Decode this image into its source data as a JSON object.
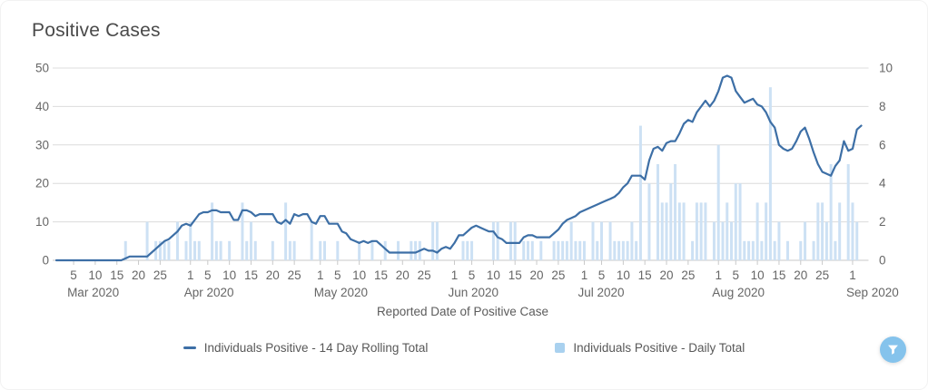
{
  "header": {
    "title": "Positive Cases"
  },
  "x_axis_title": "Reported Date of Positive Case",
  "legend": {
    "items": [
      {
        "label": "Individuals Positive - 14 Day Rolling Total",
        "marker": "line",
        "color": "#3d6fa6"
      },
      {
        "label": "Individuals Positive - Daily Total",
        "marker": "square",
        "color": "#a9d1ef"
      }
    ]
  },
  "controls": {
    "filter_button": {
      "icon": "funnel-icon",
      "color": "#85c3ec"
    }
  },
  "colors": {
    "line": "#3d6fa6",
    "bar": "#cde1f4",
    "grid": "#dcdcdc",
    "axis_baseline": "#c9c9c9",
    "tick_text": "#666666"
  },
  "chart_data": {
    "type": "line+bar",
    "title": "Positive Cases",
    "xlabel": "Reported Date of Positive Case",
    "grid": "horizontal",
    "legend_position": "bottom",
    "y_left": {
      "ticks": [
        0,
        10,
        20,
        30,
        40,
        50
      ],
      "min": 0,
      "max": 50
    },
    "y_right": {
      "ticks": [
        0,
        2,
        4,
        6,
        8,
        10
      ],
      "min": 0,
      "max": 10
    },
    "x_months": [
      {
        "label": "Mar 2020",
        "start": 0,
        "ticks": [
          5,
          10,
          15,
          20,
          25
        ]
      },
      {
        "label": "Apr 2020",
        "start": 31,
        "ticks": [
          1,
          5,
          10,
          15,
          20,
          25
        ]
      },
      {
        "label": "May 2020",
        "start": 61,
        "ticks": [
          1,
          5,
          10,
          15,
          20,
          25
        ]
      },
      {
        "label": "Jun 2020",
        "start": 92,
        "ticks": [
          1,
          5,
          10,
          15,
          20,
          25
        ]
      },
      {
        "label": "Jul 2020",
        "start": 122,
        "ticks": [
          1,
          5,
          10,
          15,
          20,
          25
        ]
      },
      {
        "label": "Aug 2020",
        "start": 153,
        "ticks": [
          1,
          5,
          10,
          15,
          20,
          25
        ]
      },
      {
        "label": "Sep 2020",
        "start": 184,
        "ticks": [
          1
        ]
      }
    ],
    "days_total": 187,
    "series": [
      {
        "name": "Individuals Positive - 14 Day Rolling Total",
        "type": "line",
        "axis": "left",
        "color": "#3d6fa6",
        "values": [
          0,
          0,
          0,
          0,
          0,
          0,
          0,
          0,
          0,
          0,
          0,
          0,
          0,
          0,
          0,
          0,
          0.5,
          1,
          1,
          1,
          1,
          1,
          2,
          3,
          4,
          5,
          5.5,
          6.5,
          7.5,
          9,
          9.5,
          9,
          10.5,
          12,
          12.5,
          12.5,
          13,
          13,
          12.5,
          12.5,
          12.5,
          10.5,
          10.5,
          13,
          13,
          12.5,
          11.5,
          12,
          12,
          12,
          12,
          10,
          9.5,
          10.5,
          9.5,
          12,
          11.5,
          12,
          12,
          10,
          9.5,
          11.5,
          11.5,
          9.5,
          9.5,
          9.5,
          7.5,
          7,
          5.5,
          5,
          4.5,
          5,
          4.5,
          5,
          5,
          4,
          3,
          2,
          2,
          2,
          2,
          2,
          2,
          2,
          2.5,
          3,
          2.5,
          2.5,
          2,
          3,
          3.5,
          3,
          4.5,
          6.5,
          6.5,
          7.5,
          8.5,
          9,
          8.5,
          8,
          7.5,
          7.5,
          6,
          5.5,
          4.5,
          4.5,
          4.5,
          4.5,
          6,
          6.5,
          6.5,
          6,
          6,
          6,
          6,
          7,
          8,
          9.5,
          10.5,
          11,
          11.5,
          12.5,
          13,
          13.5,
          14,
          14.5,
          15,
          15.5,
          16,
          16.5,
          17.5,
          19,
          20,
          22,
          22,
          22,
          21,
          26,
          29,
          29.5,
          28.5,
          30.5,
          31,
          31,
          33,
          35.5,
          36.5,
          36,
          38.5,
          40,
          41.5,
          40,
          41.5,
          44,
          47.5,
          48,
          47.5,
          44,
          42.5,
          41,
          41.5,
          42,
          40.5,
          40,
          38.5,
          36,
          34.5,
          30,
          29,
          28.5,
          29,
          31,
          33.5,
          34.5,
          31.5,
          28,
          25,
          23,
          22.5,
          22,
          24.5,
          26,
          31,
          28.5,
          29,
          34,
          35
        ]
      },
      {
        "name": "Individuals Positive - Daily Total",
        "type": "bar",
        "axis": "right",
        "color": "#cde1f4",
        "points": [
          [
            16,
            1
          ],
          [
            21,
            2
          ],
          [
            23,
            1
          ],
          [
            24,
            1
          ],
          [
            25,
            1
          ],
          [
            26,
            1
          ],
          [
            28,
            2
          ],
          [
            30,
            1
          ],
          [
            31,
            2
          ],
          [
            32,
            1
          ],
          [
            33,
            1
          ],
          [
            36,
            3
          ],
          [
            37,
            1
          ],
          [
            38,
            1
          ],
          [
            40,
            1
          ],
          [
            43,
            3
          ],
          [
            44,
            1
          ],
          [
            45,
            2
          ],
          [
            46,
            1
          ],
          [
            50,
            1
          ],
          [
            53,
            3
          ],
          [
            54,
            1
          ],
          [
            55,
            1
          ],
          [
            59,
            2
          ],
          [
            61,
            1
          ],
          [
            62,
            1
          ],
          [
            65,
            1
          ],
          [
            70,
            1
          ],
          [
            73,
            1
          ],
          [
            76,
            1
          ],
          [
            79,
            1
          ],
          [
            82,
            1
          ],
          [
            83,
            1
          ],
          [
            84,
            1
          ],
          [
            87,
            2
          ],
          [
            88,
            2
          ],
          [
            94,
            1
          ],
          [
            95,
            1
          ],
          [
            96,
            1
          ],
          [
            101,
            2
          ],
          [
            102,
            2
          ],
          [
            105,
            2
          ],
          [
            106,
            2
          ],
          [
            108,
            1
          ],
          [
            109,
            1
          ],
          [
            110,
            1
          ],
          [
            112,
            1
          ],
          [
            115,
            1
          ],
          [
            116,
            1
          ],
          [
            117,
            1
          ],
          [
            118,
            1
          ],
          [
            119,
            2
          ],
          [
            120,
            1
          ],
          [
            121,
            1
          ],
          [
            122,
            1
          ],
          [
            124,
            2
          ],
          [
            125,
            1
          ],
          [
            126,
            2
          ],
          [
            128,
            2
          ],
          [
            129,
            1
          ],
          [
            130,
            1
          ],
          [
            131,
            1
          ],
          [
            132,
            1
          ],
          [
            133,
            2
          ],
          [
            134,
            1
          ],
          [
            135,
            7
          ],
          [
            137,
            4
          ],
          [
            139,
            5
          ],
          [
            140,
            3
          ],
          [
            141,
            3
          ],
          [
            142,
            4
          ],
          [
            143,
            5
          ],
          [
            144,
            3
          ],
          [
            145,
            3
          ],
          [
            147,
            1
          ],
          [
            148,
            3
          ],
          [
            149,
            3
          ],
          [
            150,
            3
          ],
          [
            152,
            2
          ],
          [
            153,
            6
          ],
          [
            154,
            2
          ],
          [
            155,
            3
          ],
          [
            156,
            2
          ],
          [
            157,
            4
          ],
          [
            158,
            4
          ],
          [
            159,
            1
          ],
          [
            160,
            1
          ],
          [
            161,
            1
          ],
          [
            162,
            3
          ],
          [
            163,
            1
          ],
          [
            164,
            3
          ],
          [
            165,
            9
          ],
          [
            166,
            1
          ],
          [
            167,
            2
          ],
          [
            169,
            1
          ],
          [
            172,
            1
          ],
          [
            173,
            2
          ],
          [
            175,
            1
          ],
          [
            176,
            3
          ],
          [
            177,
            3
          ],
          [
            178,
            2
          ],
          [
            179,
            5
          ],
          [
            180,
            1
          ],
          [
            181,
            3
          ],
          [
            183,
            5
          ],
          [
            184,
            3
          ],
          [
            185,
            2
          ]
        ]
      }
    ]
  }
}
